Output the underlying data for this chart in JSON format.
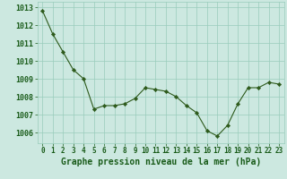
{
  "x": [
    0,
    1,
    2,
    3,
    4,
    5,
    6,
    7,
    8,
    9,
    10,
    11,
    12,
    13,
    14,
    15,
    16,
    17,
    18,
    19,
    20,
    21,
    22,
    23
  ],
  "y": [
    1012.8,
    1011.5,
    1010.5,
    1009.5,
    1009.0,
    1007.3,
    1007.5,
    1007.5,
    1007.6,
    1007.9,
    1008.5,
    1008.4,
    1008.3,
    1008.0,
    1007.5,
    1007.1,
    1006.1,
    1005.8,
    1006.4,
    1007.6,
    1008.5,
    1008.5,
    1008.8,
    1008.7
  ],
  "line_color": "#2d5a1b",
  "marker": "D",
  "marker_size": 2.2,
  "bg_color": "#cce8e0",
  "grid_color": "#99ccbb",
  "xlabel": "Graphe pression niveau de la mer (hPa)",
  "xlabel_color": "#1a5c1a",
  "tick_color": "#1a5c1a",
  "ylim_min": 1005.4,
  "ylim_max": 1013.3,
  "yticks": [
    1006,
    1007,
    1008,
    1009,
    1010,
    1011,
    1012,
    1013
  ],
  "xtick_labels": [
    "0",
    "1",
    "2",
    "3",
    "4",
    "5",
    "6",
    "7",
    "8",
    "9",
    "10",
    "11",
    "12",
    "13",
    "14",
    "15",
    "16",
    "17",
    "18",
    "19",
    "20",
    "21",
    "22",
    "23"
  ],
  "xlabel_fontsize": 7.0,
  "ytick_fontsize": 6.0,
  "xtick_fontsize": 5.5
}
